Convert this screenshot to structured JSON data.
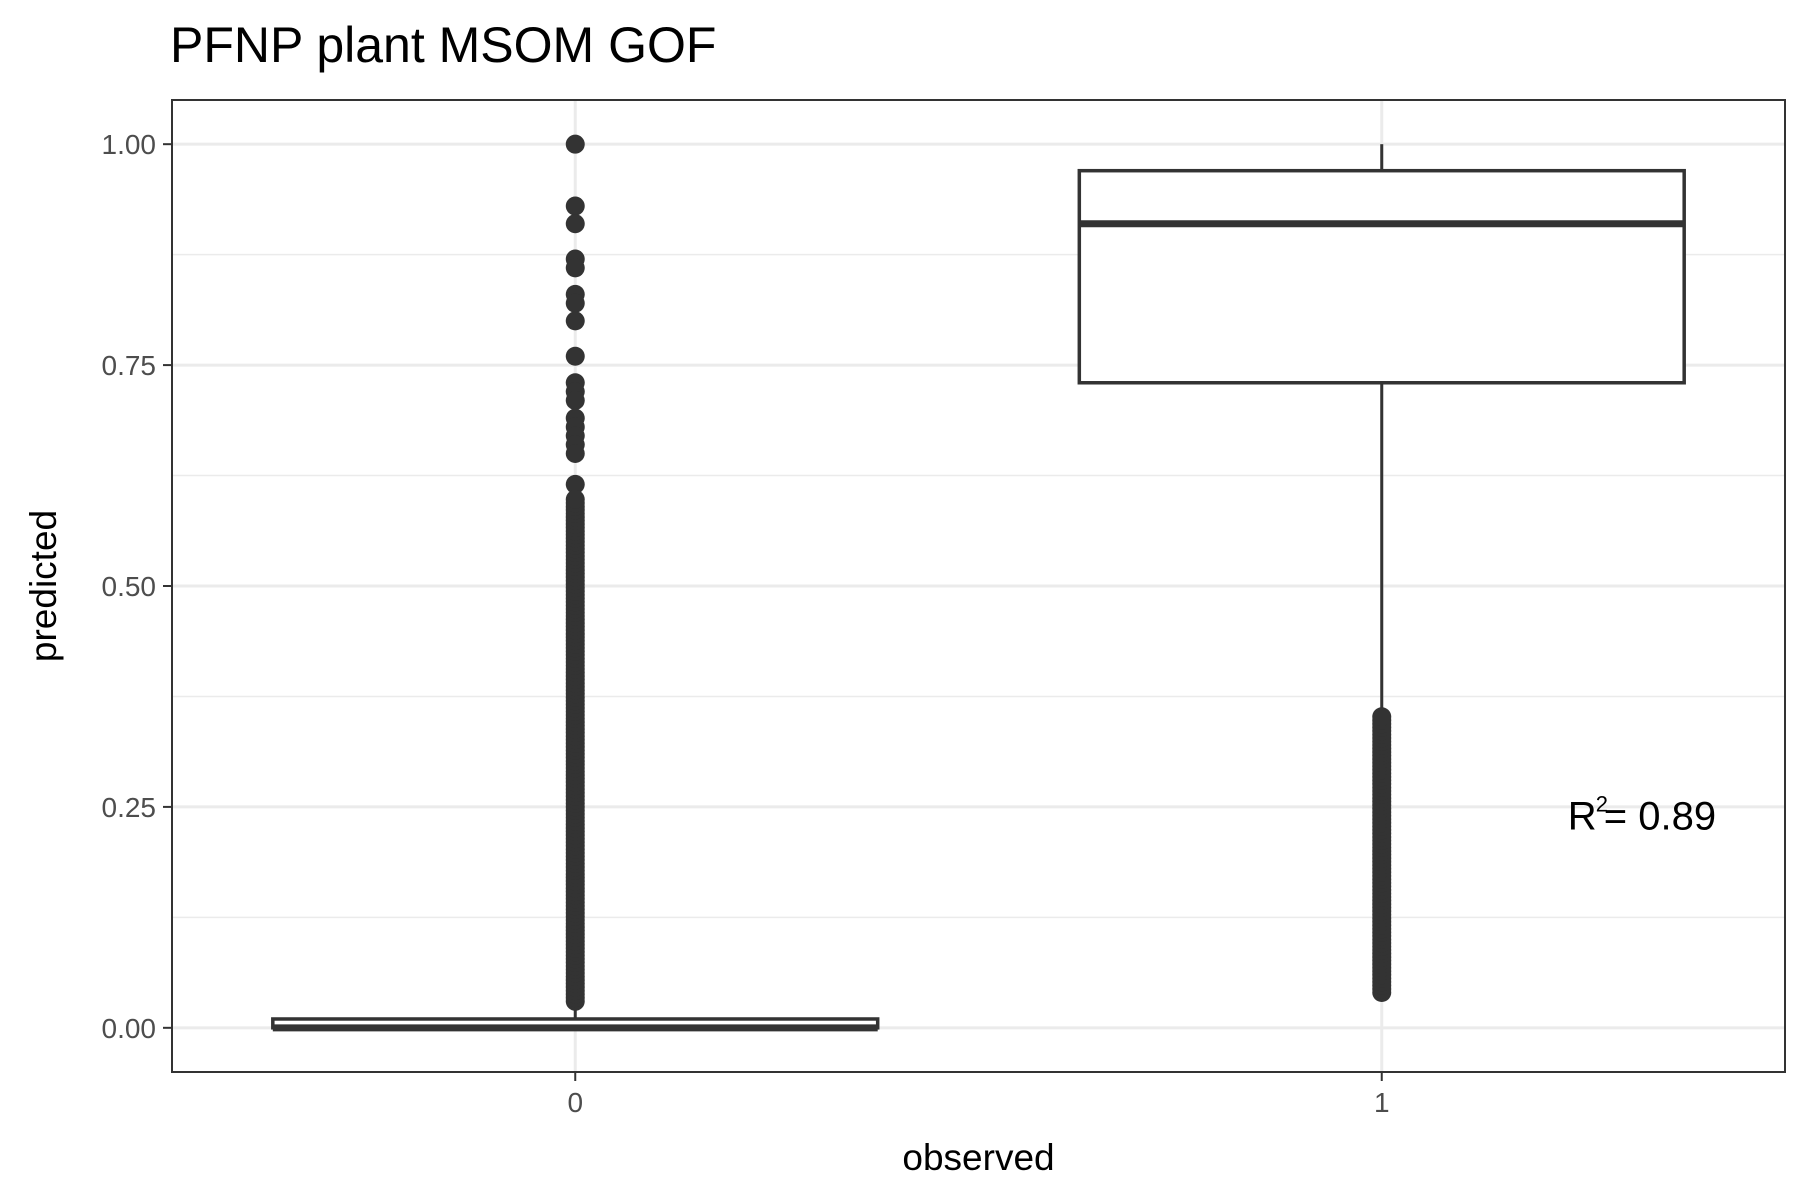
{
  "chart_data": {
    "type": "box",
    "title": "PFNP plant MSOM GOF",
    "xlabel": "observed",
    "ylabel": "predicted",
    "ylim": [
      -0.05,
      1.05
    ],
    "y_ticks": [
      0,
      0.25,
      0.5,
      0.75,
      1
    ],
    "y_tick_labels": [
      "0.00",
      "0.25",
      "0.50",
      "0.75",
      "1.00"
    ],
    "categories": [
      "0",
      "1"
    ],
    "grid": true,
    "boxes": [
      {
        "category": "0",
        "q1": 0.0,
        "median": 0.0,
        "q3": 0.01,
        "whisker_low": 0.0,
        "whisker_high": 0.025,
        "outliers": [
          1.0,
          0.93,
          0.91,
          0.87,
          0.86,
          0.83,
          0.82,
          0.8,
          0.76,
          0.73,
          0.72,
          0.71,
          0.69,
          0.68,
          0.67,
          0.66,
          0.65,
          0.615
        ],
        "outlier_dense_range": [
          0.03,
          0.6
        ]
      },
      {
        "category": "1",
        "q1": 0.73,
        "median": 0.91,
        "q3": 0.97,
        "whisker_low": 0.36,
        "whisker_high": 1.0,
        "outliers": [],
        "outlier_dense_range": [
          0.04,
          0.355
        ]
      }
    ],
    "annotation": {
      "base": "R",
      "superscript": "2",
      "text": " = 0.89",
      "x_category": "1",
      "y": 0.24
    },
    "colors": {
      "box_line": "#333333",
      "points": "#333333",
      "grid": "#ebebeb",
      "panel_border": "#333333",
      "background": "#ffffff"
    }
  }
}
